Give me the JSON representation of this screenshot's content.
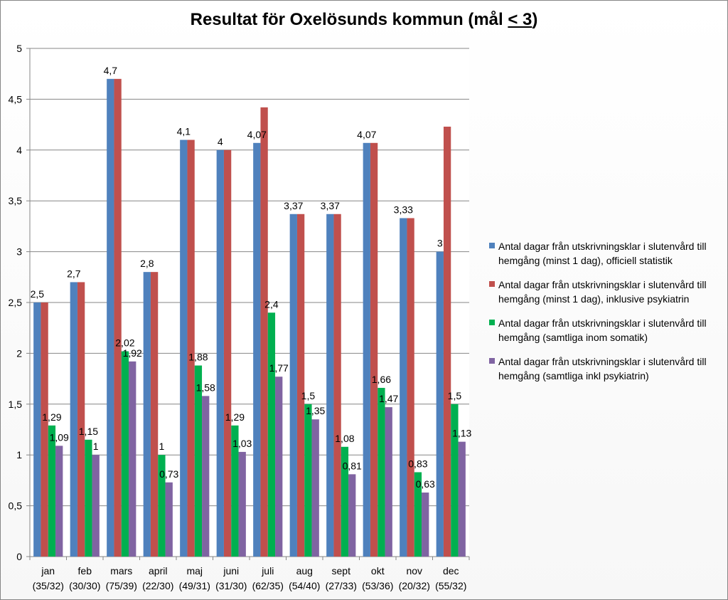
{
  "chart_data": {
    "type": "bar",
    "title_main": "Resultat för Oxelösunds kommun (mål ",
    "title_underlined": "< 3",
    "title_end": ")",
    "categories": [
      "jan",
      "feb",
      "mars",
      "april",
      "maj",
      "juni",
      "juli",
      "aug",
      "sept",
      "okt",
      "nov",
      "dec"
    ],
    "category_sublabels": [
      "(35/32)",
      "(30/30)",
      "(75/39)",
      "(22/30)",
      "(49/31)",
      "(31/30)",
      "(62/35)",
      "(54/40)",
      "(27/33)",
      "(53/36)",
      "(20/32)",
      "(55/32)"
    ],
    "series": [
      {
        "name": "Antal dagar från utskrivningsklar i slutenvård till hemgång (minst 1 dag), officiell statistik",
        "color": "#4f81bd",
        "values": [
          2.5,
          2.7,
          4.7,
          2.8,
          4.1,
          4.0,
          4.07,
          3.37,
          3.37,
          4.07,
          3.33,
          3.0
        ],
        "labels": [
          "2,5",
          "2,7",
          "4,7",
          "2,8",
          "4,1",
          "4",
          "4,07",
          "3,37",
          "3,37",
          "4,07",
          "3,33",
          "3"
        ]
      },
      {
        "name": "Antal dagar från utskrivningsklar i slutenvård till hemgång (minst 1 dag), inklusive psykiatrin",
        "color": "#c0504d",
        "values": [
          2.5,
          2.7,
          4.7,
          2.8,
          4.1,
          4.0,
          4.42,
          3.37,
          3.37,
          4.07,
          3.33,
          4.23
        ],
        "labels": [
          "",
          "",
          "",
          "",
          "",
          "",
          "",
          "",
          "",
          "",
          "",
          ""
        ]
      },
      {
        "name": "Antal dagar från utskrivningsklar i slutenvård till hemgång (samtliga inom somatik)",
        "color": "#00b050",
        "values": [
          1.29,
          1.15,
          2.02,
          1.0,
          1.88,
          1.29,
          2.4,
          1.5,
          1.08,
          1.66,
          0.83,
          1.5
        ],
        "labels": [
          "1,29",
          "1,15",
          "2,02",
          "1",
          "1,88",
          "1,29",
          "2,4",
          "1,5",
          "1,08",
          "1,66",
          "0,83",
          "1,5"
        ]
      },
      {
        "name": "Antal dagar från utskrivningsklar i slutenvård till hemgång (samtliga inkl psykiatrin)",
        "color": "#8064a2",
        "values": [
          1.09,
          1.0,
          1.92,
          0.73,
          1.58,
          1.03,
          1.77,
          1.35,
          0.81,
          1.47,
          0.63,
          1.13
        ],
        "labels": [
          "1,09",
          "1",
          "1,92",
          "0,73",
          "1,58",
          "1,03",
          "1,77",
          "1,35",
          "0,81",
          "1,47",
          "0,63",
          "1,13"
        ]
      }
    ],
    "ylim": [
      0,
      5
    ],
    "yticks": [
      0,
      0.5,
      1,
      1.5,
      2,
      2.5,
      3,
      3.5,
      4,
      4.5,
      5
    ],
    "ytick_labels": [
      "0",
      "0,5",
      "1",
      "1,5",
      "2",
      "2,5",
      "3",
      "3,5",
      "4",
      "4,5",
      "5"
    ],
    "grid": true,
    "legend_position": "right"
  }
}
